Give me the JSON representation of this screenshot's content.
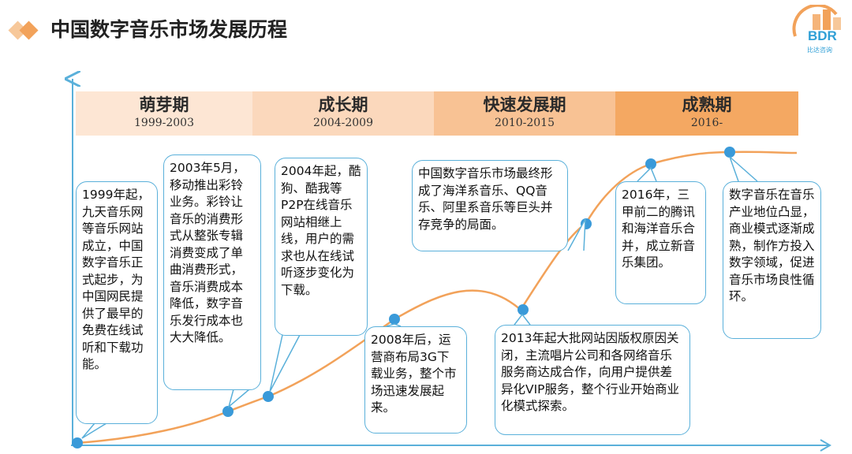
{
  "title": "中国数字音乐市场发展历程",
  "logo": {
    "brand": "BDR",
    "sub": "比达咨询"
  },
  "colors": {
    "accent_orange": "#f2a25a",
    "axis_blue": "#5ab0da",
    "dot_blue": "#3a9ad9"
  },
  "phases": [
    {
      "name": "萌芽期",
      "years": "1999-2003"
    },
    {
      "name": "成长期",
      "years": "2004-2009"
    },
    {
      "name": "快速发展期",
      "years": "2010-2015"
    },
    {
      "name": "成熟期",
      "years": "2016-"
    }
  ],
  "callouts": [
    {
      "text": "1999年起，九天音乐网等音乐网站成立，中国数字音乐正式起步，为中国网民提供了最早的免费在线试听和下载功能。"
    },
    {
      "text": "2003年5月，移动推出彩铃业务。彩铃让音乐的消费形式从整张专辑消费变成了单曲消费形式，音乐消费成本降低，数字音乐发行成本也大大降低。"
    },
    {
      "text": "2004年起，酷狗、酷我等P2P在线音乐网站相继上线，用户的需求也从在线试听逐步变化为下载。"
    },
    {
      "text": "2008年后，运营商布局3G下载业务，整个市场迅速发展起来。"
    },
    {
      "text": "中国数字音乐市场最终形成了海洋系音乐、QQ音乐、阿里系音乐等巨头并存竞争的局面。"
    },
    {
      "text": "2013年起大批网站因版权原因关闭，主流唱片公司和各网络音乐服务商达成合作，向用户提供差异化VIP服务，整个行业开始商业化模式探索。"
    },
    {
      "text": "2016年，三甲前二的腾讯和海洋音乐合并，成立新音乐集团。"
    },
    {
      "text": "数字音乐在音乐产业地位凸显，商业模式逐渐成熟，制作方投入数字领域，促进音乐市场良性循环。"
    }
  ]
}
